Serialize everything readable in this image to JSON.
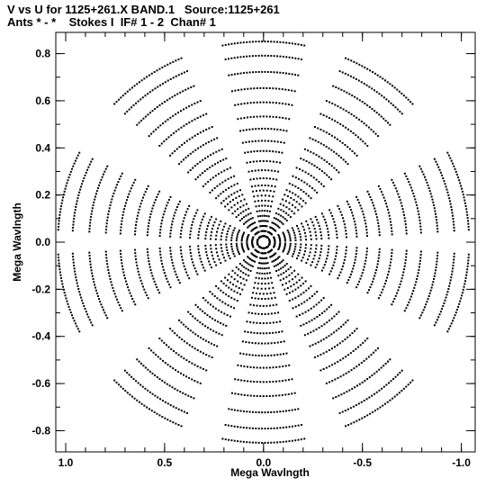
{
  "header": {
    "line1": "V vs U for 1125+261.X BAND.1   Source:1125+261",
    "line2": "Ants * - *    Stokes I  IF# 1 - 2  Chan# 1"
  },
  "chart_data": {
    "type": "scatter",
    "xlabel": "Mega Wavlngth",
    "ylabel": "Mega Wavlngth",
    "xlim": [
      1.05,
      -1.07
    ],
    "ylim": [
      -0.89,
      0.89
    ],
    "x_reversed": true,
    "grid": false,
    "legend": "none",
    "xticks": [
      {
        "value": 1.0,
        "label": "1.0"
      },
      {
        "value": 0.5,
        "label": "0.5"
      },
      {
        "value": 0.0,
        "label": "0.0"
      },
      {
        "value": -0.5,
        "label": "-0.5"
      },
      {
        "value": -1.0,
        "label": "-1.0"
      }
    ],
    "yticks": [
      {
        "value": 0.8,
        "label": "0.8"
      },
      {
        "value": 0.6,
        "label": "0.6"
      },
      {
        "value": 0.4,
        "label": "0.4"
      },
      {
        "value": 0.2,
        "label": "0.2"
      },
      {
        "value": 0.0,
        "label": "0.0"
      },
      {
        "value": -0.2,
        "label": "-0.2"
      },
      {
        "value": -0.4,
        "label": "-0.4"
      },
      {
        "value": -0.6,
        "label": "-0.6"
      },
      {
        "value": -0.8,
        "label": "-0.8"
      }
    ],
    "snapshot_position_angles_deg": [
      15,
      55,
      90,
      125,
      165
    ],
    "baseline_lengths": [
      0.03,
      0.055,
      0.08,
      0.105,
      0.13,
      0.155,
      0.18,
      0.205,
      0.23,
      0.255,
      0.28,
      0.315,
      0.355,
      0.4,
      0.45,
      0.5,
      0.56,
      0.62,
      0.69,
      0.76,
      0.84,
      0.92,
      0.99
    ],
    "snapshot_half_spread": 0.2,
    "marker_color": "#000000"
  }
}
